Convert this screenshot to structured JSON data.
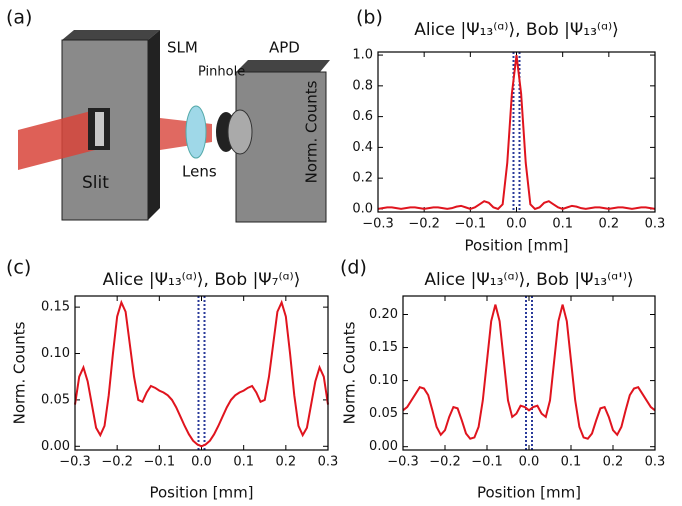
{
  "panel_a": {
    "label": "(a)",
    "texts": [
      "SLM",
      "APD",
      "Pinhole",
      "Lens",
      "Slit"
    ]
  },
  "chart_data": [
    {
      "type": "line",
      "panel_label": "(b)",
      "title": "Alice |Ψ₁₃⁽ᵅ⁾⟩, Bob |Ψ₁₃⁽ᵅ⁾⟩",
      "x_label": "Position  [mm]",
      "y_label": "Norm. Counts",
      "color": "#e0141e",
      "x": [
        -0.3,
        -0.29,
        -0.28,
        -0.27,
        -0.26,
        -0.25,
        -0.24,
        -0.23,
        -0.22,
        -0.21,
        -0.2,
        -0.19,
        -0.18,
        -0.17,
        -0.16,
        -0.15,
        -0.14,
        -0.13,
        -0.12,
        -0.11,
        -0.1,
        -0.09,
        -0.08,
        -0.07,
        -0.06,
        -0.05,
        -0.04,
        -0.03,
        -0.02,
        -0.01,
        0,
        0.01,
        0.02,
        0.03,
        0.04,
        0.05,
        0.06,
        0.07,
        0.08,
        0.09,
        0.1,
        0.11,
        0.12,
        0.13,
        0.14,
        0.15,
        0.16,
        0.17,
        0.18,
        0.19,
        0.2,
        0.21,
        0.22,
        0.23,
        0.24,
        0.25,
        0.26,
        0.27,
        0.28,
        0.29,
        0.3
      ],
      "values": [
        0.0,
        0.005,
        0.01,
        0.01,
        0.005,
        0.0,
        0.005,
        0.01,
        0.01,
        0.005,
        0.0,
        0.005,
        0.01,
        0.01,
        0.005,
        0.0,
        0.005,
        0.015,
        0.02,
        0.01,
        0.0,
        0.01,
        0.03,
        0.05,
        0.04,
        0.01,
        0.0,
        0.03,
        0.3,
        0.75,
        1.0,
        0.75,
        0.3,
        0.03,
        0.0,
        0.01,
        0.04,
        0.05,
        0.03,
        0.01,
        0.0,
        0.01,
        0.02,
        0.015,
        0.005,
        0.0,
        0.005,
        0.01,
        0.01,
        0.005,
        0.0,
        0.005,
        0.01,
        0.01,
        0.005,
        0.0,
        0.005,
        0.01,
        0.01,
        0.005,
        0.0
      ],
      "xlim": [
        -0.3,
        0.3
      ],
      "ylim": [
        -0.02,
        1.02
      ],
      "xticks": [
        {
          "value": -0.3,
          "label": "−0.3"
        },
        {
          "value": -0.2,
          "label": "−0.2"
        },
        {
          "value": -0.1,
          "label": "−0.1"
        },
        {
          "value": 0,
          "label": "0.0"
        },
        0.1,
        0.2,
        0.3
      ],
      "yticks": [
        {
          "value": 0,
          "label": "0.0"
        },
        0.2,
        0.4,
        0.6,
        0.8,
        {
          "value": 1,
          "label": "1.0"
        }
      ]
    },
    {
      "type": "line",
      "panel_label": "(c)",
      "title": "Alice |Ψ₁₃⁽ᵅ⁾⟩, Bob |Ψ₇⁽ᵅ⁾⟩",
      "x_label": "Position  [mm]",
      "y_label": "Norm. Counts",
      "color": "#e0141e",
      "x": [
        -0.3,
        -0.29,
        -0.28,
        -0.27,
        -0.26,
        -0.25,
        -0.24,
        -0.23,
        -0.22,
        -0.21,
        -0.2,
        -0.19,
        -0.18,
        -0.17,
        -0.16,
        -0.15,
        -0.14,
        -0.13,
        -0.12,
        -0.11,
        -0.1,
        -0.09,
        -0.08,
        -0.07,
        -0.06,
        -0.05,
        -0.04,
        -0.03,
        -0.02,
        -0.01,
        0,
        0.01,
        0.02,
        0.03,
        0.04,
        0.05,
        0.06,
        0.07,
        0.08,
        0.09,
        0.1,
        0.11,
        0.12,
        0.13,
        0.14,
        0.15,
        0.16,
        0.17,
        0.18,
        0.19,
        0.2,
        0.21,
        0.22,
        0.23,
        0.24,
        0.25,
        0.26,
        0.27,
        0.28,
        0.29,
        0.3
      ],
      "values": [
        0.045,
        0.075,
        0.085,
        0.07,
        0.045,
        0.02,
        0.012,
        0.022,
        0.055,
        0.1,
        0.14,
        0.155,
        0.145,
        0.11,
        0.075,
        0.05,
        0.048,
        0.058,
        0.065,
        0.063,
        0.06,
        0.058,
        0.055,
        0.05,
        0.042,
        0.032,
        0.022,
        0.013,
        0.006,
        0.002,
        0.0,
        0.002,
        0.006,
        0.013,
        0.022,
        0.032,
        0.042,
        0.05,
        0.055,
        0.058,
        0.06,
        0.063,
        0.065,
        0.058,
        0.048,
        0.05,
        0.075,
        0.11,
        0.145,
        0.155,
        0.14,
        0.1,
        0.055,
        0.022,
        0.012,
        0.02,
        0.045,
        0.07,
        0.085,
        0.075,
        0.045
      ],
      "xlim": [
        -0.3,
        0.3
      ],
      "ylim": [
        -0.004,
        0.162
      ],
      "xticks": [
        {
          "value": -0.3,
          "label": "−0.3"
        },
        {
          "value": -0.2,
          "label": "−0.2"
        },
        {
          "value": -0.1,
          "label": "−0.1"
        },
        {
          "value": 0,
          "label": "0.0"
        },
        0.1,
        0.2,
        0.3
      ],
      "yticks": [
        {
          "value": 0,
          "label": "0.00"
        },
        0.05,
        {
          "value": 0.1,
          "label": "0.10"
        },
        0.15
      ]
    },
    {
      "type": "line",
      "panel_label": "(d)",
      "title": "Alice |Ψ₁₃⁽ᵅ⁾⟩, Bob |Ψ₁₃⁽ᵅ'⁾⟩",
      "x_label": "Position  [mm]",
      "y_label": "Norm. Counts",
      "color": "#e0141e",
      "x": [
        -0.3,
        -0.29,
        -0.28,
        -0.27,
        -0.26,
        -0.25,
        -0.24,
        -0.23,
        -0.22,
        -0.21,
        -0.2,
        -0.19,
        -0.18,
        -0.17,
        -0.16,
        -0.15,
        -0.14,
        -0.13,
        -0.12,
        -0.11,
        -0.1,
        -0.09,
        -0.08,
        -0.07,
        -0.06,
        -0.05,
        -0.04,
        -0.03,
        -0.02,
        -0.01,
        0,
        0.01,
        0.02,
        0.03,
        0.04,
        0.05,
        0.06,
        0.07,
        0.08,
        0.09,
        0.1,
        0.11,
        0.12,
        0.13,
        0.14,
        0.15,
        0.16,
        0.17,
        0.18,
        0.19,
        0.2,
        0.21,
        0.22,
        0.23,
        0.24,
        0.25,
        0.26,
        0.27,
        0.28,
        0.29,
        0.3
      ],
      "values": [
        0.055,
        0.06,
        0.07,
        0.08,
        0.09,
        0.088,
        0.078,
        0.055,
        0.03,
        0.018,
        0.025,
        0.045,
        0.06,
        0.058,
        0.04,
        0.02,
        0.012,
        0.014,
        0.03,
        0.07,
        0.13,
        0.19,
        0.215,
        0.19,
        0.13,
        0.07,
        0.045,
        0.05,
        0.062,
        0.06,
        0.055,
        0.06,
        0.062,
        0.05,
        0.045,
        0.07,
        0.13,
        0.19,
        0.215,
        0.19,
        0.13,
        0.07,
        0.03,
        0.014,
        0.012,
        0.02,
        0.04,
        0.058,
        0.06,
        0.045,
        0.025,
        0.018,
        0.03,
        0.055,
        0.078,
        0.088,
        0.09,
        0.08,
        0.07,
        0.06,
        0.055
      ],
      "xlim": [
        -0.3,
        0.3
      ],
      "ylim": [
        -0.005,
        0.228
      ],
      "xticks": [
        {
          "value": -0.3,
          "label": "−0.3"
        },
        {
          "value": -0.2,
          "label": "−0.2"
        },
        {
          "value": -0.1,
          "label": "−0.1"
        },
        {
          "value": 0,
          "label": "0.0"
        },
        0.1,
        0.2,
        0.3
      ],
      "yticks": [
        {
          "value": 0,
          "label": "0.00"
        },
        0.05,
        {
          "value": 0.1,
          "label": "0.10"
        },
        0.15,
        {
          "value": 0.2,
          "label": "0.20"
        }
      ]
    }
  ]
}
